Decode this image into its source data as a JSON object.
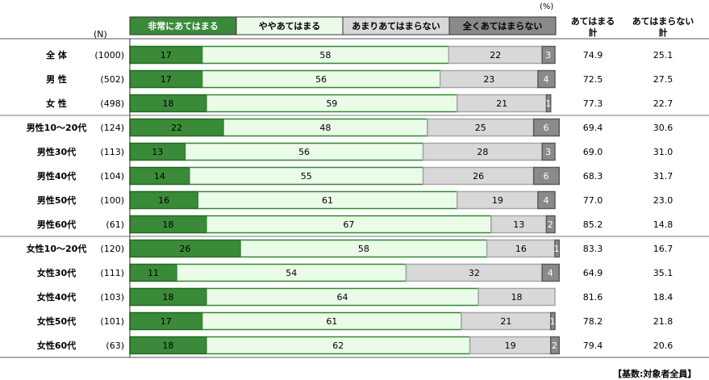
{
  "unit_label": "(%)",
  "n_header": "(N)",
  "totals_headers": {
    "agree": [
      "あてはまる",
      "計"
    ],
    "disagree": [
      "あてはまらない",
      "計"
    ]
  },
  "footnote": "【基数:対象者全員】",
  "colors": {
    "strongly_agree": "#3a8a3a",
    "somewhat_agree": "#eafbe8",
    "somewhat_disagree": "#d8d8d8",
    "strongly_disagree": "#8a8a8a"
  },
  "chart_data": {
    "type": "bar",
    "orientation": "horizontal",
    "stacked": true,
    "xlim": [
      0,
      100
    ],
    "categories": [
      "全 体",
      "男 性",
      "女 性",
      "男性10～20代",
      "男性30代",
      "男性40代",
      "男性50代",
      "男性60代",
      "女性10～20代",
      "女性30代",
      "女性40代",
      "女性50代",
      "女性60代"
    ],
    "n": [
      "(1000)",
      "(502)",
      "(498)",
      "(124)",
      "(113)",
      "(104)",
      "(100)",
      "(61)",
      "(120)",
      "(111)",
      "(103)",
      "(101)",
      "(63)"
    ],
    "series": [
      {
        "name": "非常にあてはまる",
        "values": [
          17,
          17,
          18,
          22,
          13,
          14,
          16,
          18,
          26,
          11,
          18,
          17,
          18
        ]
      },
      {
        "name": "ややあてはまる",
        "values": [
          58,
          56,
          59,
          48,
          56,
          55,
          61,
          67,
          58,
          54,
          64,
          61,
          62
        ]
      },
      {
        "name": "あまりあてはまらない",
        "values": [
          22,
          23,
          21,
          25,
          28,
          26,
          19,
          13,
          16,
          32,
          18,
          21,
          19
        ]
      },
      {
        "name": "全くあてはまらない",
        "values": [
          3,
          4,
          1,
          6,
          3,
          6,
          4,
          2,
          1,
          4,
          0,
          1,
          2
        ]
      }
    ],
    "agree_total": [
      "74.9",
      "72.5",
      "77.3",
      "69.4",
      "69.0",
      "68.3",
      "77.0",
      "85.2",
      "83.3",
      "64.9",
      "81.6",
      "78.2",
      "79.4"
    ],
    "disagree_total": [
      "25.1",
      "27.5",
      "22.7",
      "30.6",
      "31.0",
      "31.7",
      "23.0",
      "14.8",
      "16.7",
      "35.1",
      "18.4",
      "21.8",
      "20.6"
    ]
  }
}
